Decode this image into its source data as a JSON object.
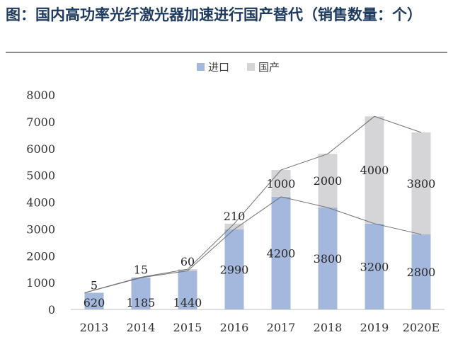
{
  "title": "图：国内高功率光纤激光器加速进行国产替代（销售数量：个）",
  "chart_data": {
    "type": "bar",
    "stacked": true,
    "categories": [
      "2013",
      "2014",
      "2015",
      "2016",
      "2017",
      "2018",
      "2019",
      "2020E"
    ],
    "series": [
      {
        "name": "进口",
        "values": [
          620,
          1185,
          1440,
          2990,
          4200,
          3800,
          3200,
          2800
        ],
        "color": "#a3b8dc"
      },
      {
        "name": "国产",
        "values": [
          5,
          15,
          60,
          210,
          1000,
          2000,
          4000,
          3800
        ],
        "color": "#d5d4d7"
      }
    ],
    "ylim": [
      0,
      8000
    ],
    "yticks": [
      0,
      1000,
      2000,
      3000,
      4000,
      5000,
      6000,
      7000,
      8000
    ],
    "grid": false,
    "legend_position": "top-center",
    "trend_lines": true,
    "line_color": "#6f6f6f"
  }
}
